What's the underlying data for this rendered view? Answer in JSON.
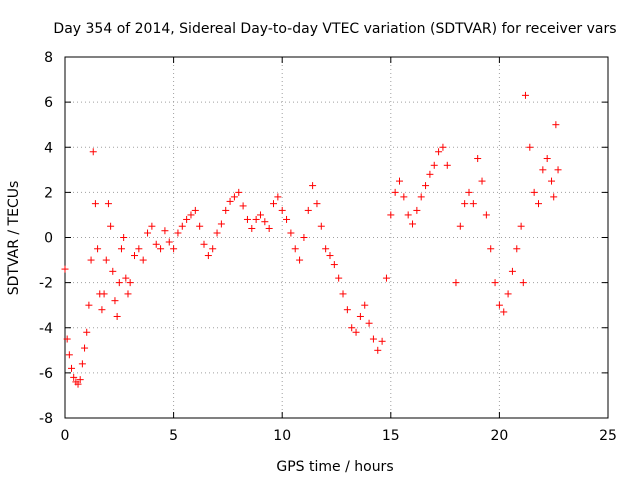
{
  "chart_data": {
    "type": "scatter",
    "title": "Day 354 of 2014, Sidereal Day-to-day VTEC variation (SDTVAR) for receiver vars",
    "xlabel": "GPS time / hours",
    "ylabel": "SDTVAR / TECUs",
    "xlim": [
      0,
      25
    ],
    "ylim": [
      -8,
      8
    ],
    "xticks": [
      0,
      5,
      10,
      15,
      20,
      25
    ],
    "yticks": [
      -8,
      -6,
      -4,
      -2,
      0,
      2,
      4,
      6,
      8
    ],
    "grid": true,
    "marker": "+",
    "color": "#ff0000",
    "series": [
      {
        "name": "vars",
        "x": [
          0.0,
          0.1,
          0.2,
          0.3,
          0.4,
          0.5,
          0.6,
          0.7,
          0.8,
          0.9,
          1.0,
          1.1,
          1.2,
          1.3,
          1.4,
          1.5,
          1.6,
          1.7,
          1.8,
          1.9,
          2.0,
          2.1,
          2.2,
          2.3,
          2.4,
          2.5,
          2.6,
          2.7,
          2.8,
          2.9,
          3.0,
          3.2,
          3.4,
          3.6,
          3.8,
          4.0,
          4.2,
          4.4,
          4.6,
          4.8,
          5.0,
          5.2,
          5.4,
          5.6,
          5.8,
          6.0,
          6.2,
          6.4,
          6.6,
          6.8,
          7.0,
          7.2,
          7.4,
          7.6,
          7.8,
          8.0,
          8.2,
          8.4,
          8.6,
          8.8,
          9.0,
          9.2,
          9.4,
          9.6,
          9.8,
          10.0,
          10.2,
          10.4,
          10.6,
          10.8,
          11.0,
          11.2,
          11.4,
          11.6,
          11.8,
          12.0,
          12.2,
          12.4,
          12.6,
          12.8,
          13.0,
          13.2,
          13.4,
          13.6,
          13.8,
          14.0,
          14.2,
          14.4,
          14.6,
          14.8,
          15.0,
          15.2,
          15.4,
          15.6,
          15.8,
          16.0,
          16.2,
          16.4,
          16.6,
          16.8,
          17.0,
          17.2,
          17.4,
          17.6,
          18.0,
          18.2,
          18.4,
          18.6,
          18.8,
          19.0,
          19.2,
          19.4,
          19.6,
          19.8,
          20.0,
          20.2,
          20.4,
          20.6,
          20.8,
          21.0,
          21.1,
          21.2,
          21.4,
          21.6,
          21.8,
          22.0,
          22.2,
          22.4,
          22.5,
          22.6,
          22.7
        ],
        "y": [
          -1.4,
          -4.5,
          -5.2,
          -5.8,
          -6.2,
          -6.4,
          -6.5,
          -6.3,
          -5.6,
          -4.9,
          -4.2,
          -3.0,
          -1.0,
          3.8,
          1.5,
          -0.5,
          -2.5,
          -3.2,
          -2.5,
          -1.0,
          1.5,
          0.5,
          -1.5,
          -2.8,
          -3.5,
          -2.0,
          -0.5,
          0.0,
          -1.8,
          -2.5,
          -2.0,
          -0.8,
          -0.5,
          -1.0,
          0.2,
          0.5,
          -0.3,
          -0.5,
          0.3,
          -0.2,
          -0.5,
          0.2,
          0.5,
          0.8,
          1.0,
          1.2,
          0.5,
          -0.3,
          -0.8,
          -0.5,
          0.2,
          0.6,
          1.2,
          1.6,
          1.8,
          2.0,
          1.4,
          0.8,
          0.4,
          0.8,
          1.0,
          0.7,
          0.4,
          1.5,
          1.8,
          1.2,
          0.8,
          0.2,
          -0.5,
          -1.0,
          0.0,
          1.2,
          2.3,
          1.5,
          0.5,
          -0.5,
          -0.8,
          -1.2,
          -1.8,
          -2.5,
          -3.2,
          -4.0,
          -4.2,
          -3.5,
          -3.0,
          -3.8,
          -4.5,
          -5.0,
          -4.6,
          -1.8,
          1.0,
          2.0,
          2.5,
          1.8,
          1.0,
          0.6,
          1.2,
          1.8,
          2.3,
          2.8,
          3.2,
          3.8,
          4.0,
          3.2,
          -2.0,
          0.5,
          1.5,
          2.0,
          1.5,
          3.5,
          2.5,
          1.0,
          -0.5,
          -2.0,
          -3.0,
          -3.3,
          -2.5,
          -1.5,
          -0.5,
          0.5,
          -2.0,
          6.3,
          4.0,
          2.0,
          1.5,
          3.0,
          3.5,
          2.5,
          1.8,
          5.0,
          3.0
        ]
      }
    ]
  }
}
